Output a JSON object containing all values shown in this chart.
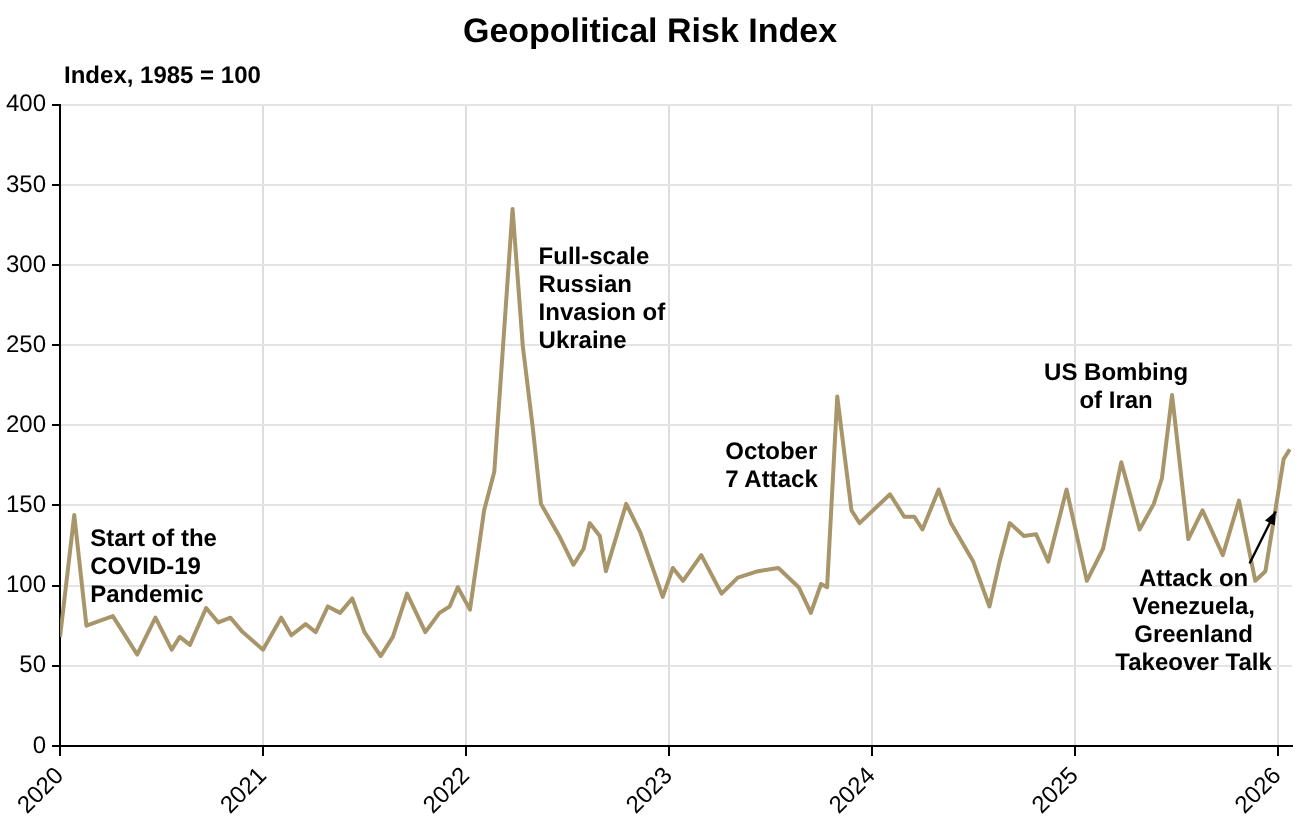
{
  "chart_data": {
    "type": "line",
    "title": "Geopolitical Risk Index",
    "ylabel": "Index, 1985 = 100",
    "x": [
      2020.0,
      2020.07,
      2020.13,
      2020.26,
      2020.29,
      2020.38,
      2020.47,
      2020.55,
      2020.59,
      2020.64,
      2020.72,
      2020.78,
      2020.84,
      2020.9,
      2021.0,
      2021.09,
      2021.14,
      2021.21,
      2021.26,
      2021.32,
      2021.38,
      2021.44,
      2021.5,
      2021.58,
      2021.64,
      2021.71,
      2021.8,
      2021.87,
      2021.92,
      2021.96,
      2022.02,
      2022.09,
      2022.14,
      2022.23,
      2022.28,
      2022.33,
      2022.37,
      2022.46,
      2022.53,
      2022.58,
      2022.61,
      2022.66,
      2022.69,
      2022.79,
      2022.86,
      2022.97,
      2023.02,
      2023.07,
      2023.16,
      2023.26,
      2023.34,
      2023.44,
      2023.54,
      2023.64,
      2023.7,
      2023.75,
      2023.78,
      2023.83,
      2023.9,
      2023.94,
      2024.09,
      2024.16,
      2024.21,
      2024.25,
      2024.33,
      2024.39,
      2024.5,
      2024.58,
      2024.63,
      2024.68,
      2024.75,
      2024.81,
      2024.87,
      2024.96,
      2025.06,
      2025.14,
      2025.23,
      2025.32,
      2025.39,
      2025.43,
      2025.48,
      2025.56,
      2025.63,
      2025.73,
      2025.81,
      2025.89,
      2025.94,
      2026.03,
      2026.06
    ],
    "series": [
      {
        "color": "#a8966a",
        "values": [
          68,
          144,
          75,
          81,
          75,
          57,
          80,
          60,
          68,
          63,
          86,
          77,
          80,
          71,
          60,
          80,
          69,
          76,
          71,
          87,
          83,
          92,
          71,
          56,
          68,
          95,
          71,
          83,
          87,
          99,
          85,
          147,
          171,
          335,
          250,
          198,
          151,
          131,
          113,
          123,
          139,
          131,
          109,
          151,
          133,
          93,
          111,
          103,
          119,
          95,
          105,
          109,
          111,
          99,
          83,
          101,
          99,
          218,
          147,
          139,
          157,
          143,
          143,
          135,
          160,
          139,
          115,
          87,
          115,
          139,
          131,
          132,
          115,
          160,
          103,
          123,
          177,
          135,
          151,
          167,
          219,
          129,
          147,
          119,
          153,
          103,
          109,
          179,
          185
        ]
      }
    ],
    "xlim": [
      2020,
      2026.07
    ],
    "xticks": [
      2020,
      2021,
      2022,
      2023,
      2024,
      2025,
      2026
    ],
    "ylim": [
      0,
      400
    ],
    "yticks": [
      0,
      50,
      100,
      150,
      200,
      250,
      300,
      350,
      400
    ],
    "grid": true,
    "legend": false,
    "marker": "none",
    "line_style": "solid",
    "annotations": [
      {
        "text": "Start of the COVID-19 Pandemic",
        "x": 2020.07,
        "y": 144
      },
      {
        "text": "Full-scale Russian Invasion of Ukraine",
        "x": 2022.23,
        "y": 335
      },
      {
        "text": "October 7 Attack",
        "x": 2023.83,
        "y": 218
      },
      {
        "text": "US Bombing of Iran",
        "x": 2025.48,
        "y": 219
      },
      {
        "text": "Attack on Venezuela, Greenland Takeover Talk",
        "x": 2026.0,
        "y": 150
      }
    ]
  }
}
